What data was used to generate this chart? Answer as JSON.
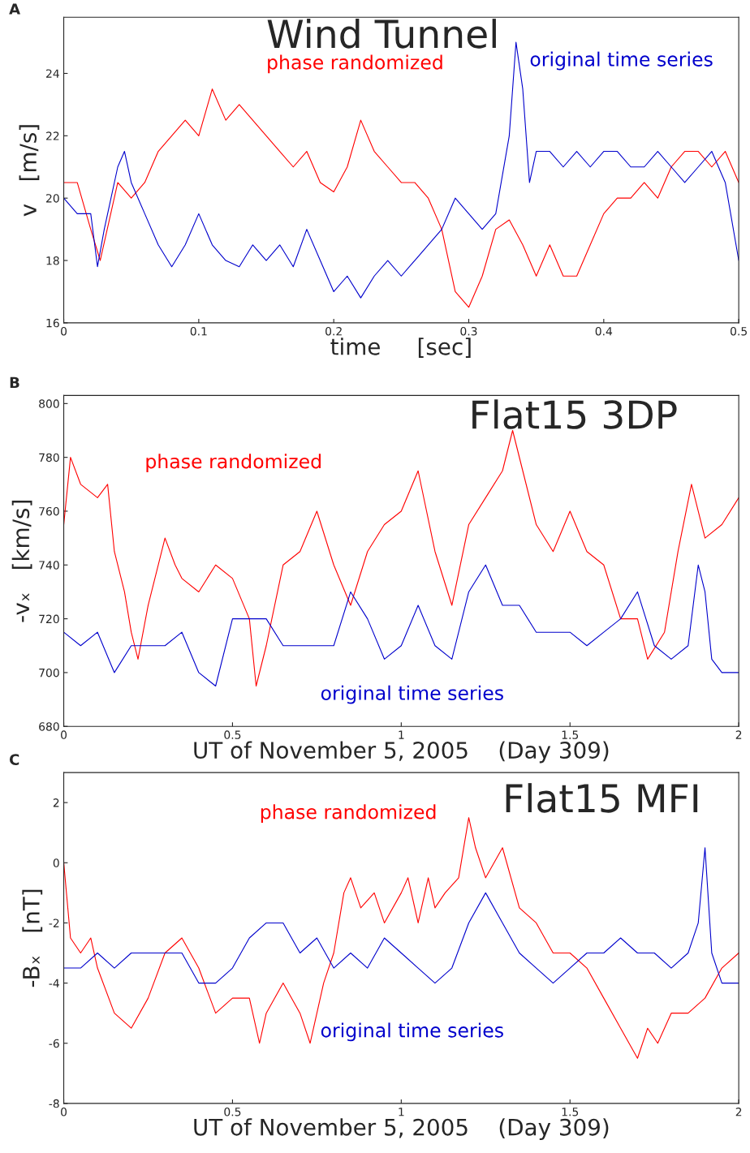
{
  "chart_data": [
    {
      "type": "line",
      "title": "Wind Tunnel",
      "xlabel": "time     [sec]",
      "ylabel": "v   [m/s]",
      "annotations": [
        "A"
      ],
      "legend": false,
      "grid": false,
      "xlim": [
        0,
        0.5
      ],
      "xticks": [
        0,
        0.1,
        0.2,
        0.3,
        0.4,
        0.5
      ],
      "ylim": [
        16,
        25.8
      ],
      "yticks": [
        16,
        18,
        20,
        22,
        24
      ],
      "series": [
        {
          "name": "phase randomized",
          "color": "#ff0000",
          "x": [
            0,
            0.01,
            0.02,
            0.027,
            0.04,
            0.05,
            0.06,
            0.07,
            0.08,
            0.09,
            0.1,
            0.11,
            0.12,
            0.13,
            0.14,
            0.15,
            0.16,
            0.17,
            0.18,
            0.19,
            0.2,
            0.21,
            0.22,
            0.23,
            0.24,
            0.25,
            0.26,
            0.27,
            0.28,
            0.29,
            0.3,
            0.31,
            0.32,
            0.33,
            0.34,
            0.35,
            0.36,
            0.37,
            0.38,
            0.39,
            0.4,
            0.41,
            0.42,
            0.43,
            0.44,
            0.45,
            0.46,
            0.47,
            0.48,
            0.49,
            0.5
          ],
          "values": [
            20.5,
            20.5,
            19,
            18,
            20.5,
            20,
            20.5,
            21.5,
            22,
            22.5,
            22,
            23.5,
            22.5,
            23,
            22.5,
            22,
            21.5,
            21,
            21.5,
            20.5,
            20.2,
            21,
            22.5,
            21.5,
            21,
            20.5,
            20.5,
            20,
            19,
            17,
            16.5,
            17.5,
            19,
            19.3,
            18.5,
            17.5,
            18.5,
            17.5,
            17.5,
            18.5,
            19.5,
            20,
            20,
            20.5,
            20,
            21,
            21.5,
            21.5,
            21,
            21.5,
            20.5
          ]
        },
        {
          "name": "original time series",
          "color": "#0000cc",
          "x": [
            0,
            0.01,
            0.02,
            0.025,
            0.03,
            0.04,
            0.045,
            0.05,
            0.06,
            0.07,
            0.08,
            0.09,
            0.1,
            0.11,
            0.12,
            0.13,
            0.14,
            0.15,
            0.16,
            0.17,
            0.18,
            0.19,
            0.2,
            0.21,
            0.22,
            0.23,
            0.24,
            0.25,
            0.26,
            0.27,
            0.28,
            0.29,
            0.3,
            0.31,
            0.32,
            0.33,
            0.335,
            0.34,
            0.345,
            0.35,
            0.36,
            0.37,
            0.38,
            0.39,
            0.4,
            0.41,
            0.42,
            0.43,
            0.44,
            0.45,
            0.46,
            0.47,
            0.48,
            0.49,
            0.5
          ],
          "values": [
            20,
            19.5,
            19.5,
            17.8,
            19,
            21,
            21.5,
            20.5,
            19.5,
            18.5,
            17.8,
            18.5,
            19.5,
            18.5,
            18,
            17.8,
            18.5,
            18,
            18.5,
            17.8,
            19,
            18,
            17,
            17.5,
            16.8,
            17.5,
            18,
            17.5,
            18,
            18.5,
            19,
            20,
            19.5,
            19,
            19.5,
            22,
            25,
            23.5,
            20.5,
            21.5,
            21.5,
            21,
            21.5,
            21,
            21.5,
            21.5,
            21,
            21,
            21.5,
            21,
            20.5,
            21,
            21.5,
            20.5,
            18
          ]
        }
      ]
    },
    {
      "type": "line",
      "title": "Flat15 3DP",
      "xlabel": "UT of November 5, 2005    (Day 309)",
      "ylabel": "-vₓ   [km/s]",
      "annotations": [
        "B"
      ],
      "legend": false,
      "grid": false,
      "xlim": [
        0,
        2
      ],
      "xticks": [
        0,
        0.5,
        1,
        1.5,
        2
      ],
      "ylim": [
        680,
        803
      ],
      "yticks": [
        680,
        700,
        720,
        740,
        760,
        780,
        800
      ],
      "series": [
        {
          "name": "phase randomized",
          "color": "#ff0000",
          "x": [
            0,
            0.02,
            0.05,
            0.1,
            0.13,
            0.15,
            0.18,
            0.2,
            0.22,
            0.25,
            0.3,
            0.33,
            0.35,
            0.4,
            0.45,
            0.5,
            0.55,
            0.57,
            0.6,
            0.65,
            0.7,
            0.75,
            0.8,
            0.85,
            0.9,
            0.95,
            1.0,
            1.05,
            1.1,
            1.15,
            1.2,
            1.25,
            1.3,
            1.33,
            1.36,
            1.4,
            1.45,
            1.5,
            1.55,
            1.6,
            1.65,
            1.7,
            1.73,
            1.78,
            1.82,
            1.86,
            1.9,
            1.95,
            2.0
          ],
          "values": [
            755,
            780,
            770,
            765,
            770,
            745,
            730,
            715,
            705,
            725,
            750,
            740,
            735,
            730,
            740,
            735,
            720,
            695,
            710,
            740,
            745,
            760,
            740,
            725,
            745,
            755,
            760,
            775,
            745,
            725,
            755,
            765,
            775,
            790,
            775,
            755,
            745,
            760,
            745,
            740,
            720,
            720,
            705,
            715,
            745,
            770,
            750,
            755,
            765
          ]
        },
        {
          "name": "original time series",
          "color": "#0000cc",
          "x": [
            0,
            0.05,
            0.1,
            0.15,
            0.2,
            0.25,
            0.3,
            0.35,
            0.4,
            0.45,
            0.5,
            0.55,
            0.6,
            0.65,
            0.7,
            0.75,
            0.8,
            0.85,
            0.9,
            0.95,
            1.0,
            1.05,
            1.1,
            1.15,
            1.2,
            1.25,
            1.3,
            1.35,
            1.4,
            1.45,
            1.5,
            1.55,
            1.6,
            1.65,
            1.7,
            1.75,
            1.8,
            1.85,
            1.88,
            1.9,
            1.92,
            1.95,
            2.0
          ],
          "values": [
            715,
            710,
            715,
            700,
            710,
            710,
            710,
            715,
            700,
            695,
            720,
            720,
            720,
            710,
            710,
            710,
            710,
            730,
            720,
            705,
            710,
            725,
            710,
            705,
            730,
            740,
            725,
            725,
            715,
            715,
            715,
            710,
            715,
            720,
            730,
            710,
            705,
            710,
            740,
            730,
            705,
            700,
            700
          ]
        }
      ]
    },
    {
      "type": "line",
      "title": "Flat15 MFI",
      "xlabel": "UT of November 5, 2005    (Day 309)",
      "ylabel": "-Bₓ   [nT]",
      "annotations": [
        "C"
      ],
      "legend": false,
      "grid": false,
      "xlim": [
        0,
        2
      ],
      "xticks": [
        0,
        0.5,
        1,
        1.5,
        2
      ],
      "ylim": [
        -8,
        3
      ],
      "yticks": [
        -8,
        -6,
        -4,
        -2,
        0,
        2
      ],
      "series": [
        {
          "name": "phase randomized",
          "color": "#ff0000",
          "x": [
            0,
            0.02,
            0.05,
            0.08,
            0.1,
            0.15,
            0.2,
            0.25,
            0.3,
            0.35,
            0.4,
            0.45,
            0.5,
            0.55,
            0.58,
            0.6,
            0.65,
            0.7,
            0.73,
            0.77,
            0.8,
            0.83,
            0.85,
            0.88,
            0.92,
            0.95,
            1.0,
            1.02,
            1.05,
            1.08,
            1.1,
            1.13,
            1.17,
            1.2,
            1.22,
            1.25,
            1.3,
            1.35,
            1.4,
            1.45,
            1.5,
            1.55,
            1.6,
            1.65,
            1.7,
            1.73,
            1.76,
            1.8,
            1.85,
            1.9,
            1.95,
            2.0
          ],
          "values": [
            0,
            -2.5,
            -3,
            -2.5,
            -3.5,
            -5,
            -5.5,
            -4.5,
            -3,
            -2.5,
            -3.5,
            -5,
            -4.5,
            -4.5,
            -6,
            -5,
            -4,
            -5,
            -6,
            -4,
            -3,
            -1,
            -0.5,
            -1.5,
            -1,
            -2,
            -1,
            -0.5,
            -2,
            -0.5,
            -1.5,
            -1,
            -0.5,
            1.5,
            0.5,
            -0.5,
            0.5,
            -1.5,
            -2,
            -3,
            -3,
            -3.5,
            -4.5,
            -5.5,
            -6.5,
            -5.5,
            -6,
            -5,
            -5,
            -4.5,
            -3.5,
            -3
          ]
        },
        {
          "name": "original time series",
          "color": "#0000cc",
          "x": [
            0,
            0.05,
            0.1,
            0.15,
            0.2,
            0.25,
            0.3,
            0.35,
            0.4,
            0.45,
            0.5,
            0.55,
            0.6,
            0.65,
            0.7,
            0.75,
            0.8,
            0.85,
            0.9,
            0.95,
            1.0,
            1.05,
            1.1,
            1.15,
            1.2,
            1.25,
            1.3,
            1.35,
            1.4,
            1.45,
            1.5,
            1.55,
            1.6,
            1.65,
            1.7,
            1.75,
            1.8,
            1.85,
            1.88,
            1.9,
            1.92,
            1.95,
            2.0
          ],
          "values": [
            -3.5,
            -3.5,
            -3,
            -3.5,
            -3,
            -3,
            -3,
            -3,
            -4,
            -4,
            -3.5,
            -2.5,
            -2,
            -2,
            -3,
            -2.5,
            -3.5,
            -3,
            -3.5,
            -2.5,
            -3,
            -3.5,
            -4,
            -3.5,
            -2,
            -1,
            -2,
            -3,
            -3.5,
            -4,
            -3.5,
            -3,
            -3,
            -2.5,
            -3,
            -3,
            -3.5,
            -3,
            -2,
            0.5,
            -3,
            -4,
            -4
          ]
        }
      ]
    }
  ]
}
